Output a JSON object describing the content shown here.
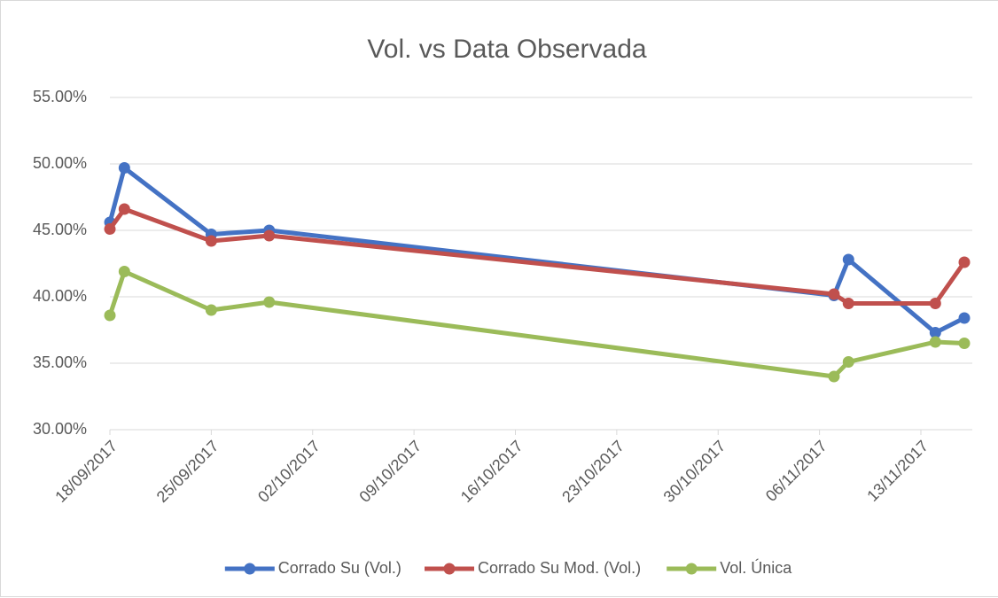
{
  "chart_data": {
    "type": "line",
    "title": "Vol. vs Data Observada",
    "x": [
      "18/09/2017",
      "19/09/2017",
      "25/09/2017",
      "29/09/2017",
      "07/11/2017",
      "08/11/2017",
      "14/11/2017",
      "16/11/2017"
    ],
    "series": [
      {
        "name": "Corrado Su (Vol.)",
        "color": "#4472c4",
        "values": [
          45.6,
          49.7,
          44.7,
          45.0,
          40.1,
          42.8,
          37.3,
          38.4
        ]
      },
      {
        "name": "Corrado Su Mod. (Vol.)",
        "color": "#c0504d",
        "values": [
          45.1,
          46.6,
          44.2,
          44.6,
          40.2,
          39.5,
          39.5,
          42.6
        ]
      },
      {
        "name": "Vol. Única",
        "color": "#9bbb59",
        "values": [
          38.6,
          41.9,
          39.0,
          39.6,
          34.0,
          35.1,
          36.6,
          36.5
        ]
      }
    ],
    "xlim": [
      "18/09/2017",
      "16/11/2017"
    ],
    "xticks": [
      "18/09/2017",
      "25/09/2017",
      "02/10/2017",
      "09/10/2017",
      "16/10/2017",
      "23/10/2017",
      "30/10/2017",
      "06/11/2017",
      "13/11/2017"
    ],
    "ylim": [
      30,
      55
    ],
    "yticks": [
      {
        "value": 30,
        "label": "30.00%"
      },
      {
        "value": 35,
        "label": "35.00%"
      },
      {
        "value": 40,
        "label": "40.00%"
      },
      {
        "value": 45,
        "label": "45.00%"
      },
      {
        "value": 50,
        "label": "50.00%"
      },
      {
        "value": 55,
        "label": "55.00%"
      }
    ],
    "grid": true,
    "legend": "bottom"
  }
}
